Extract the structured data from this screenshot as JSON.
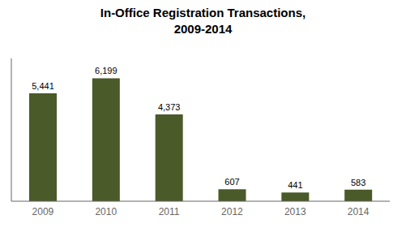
{
  "chart_data": {
    "type": "bar",
    "title": "In-Office Registration Transactions,\n2009-2014",
    "categories": [
      "2009",
      "2010",
      "2011",
      "2012",
      "2013",
      "2014"
    ],
    "values": [
      5441,
      6199,
      4373,
      607,
      441,
      583
    ],
    "value_labels": [
      "5,441",
      "6,199",
      "4,373",
      "607",
      "441",
      "583"
    ],
    "data_labels": true,
    "color": "#4a5a28",
    "ylim": [
      0,
      7200
    ],
    "grid": false,
    "tick_labels": "x"
  }
}
